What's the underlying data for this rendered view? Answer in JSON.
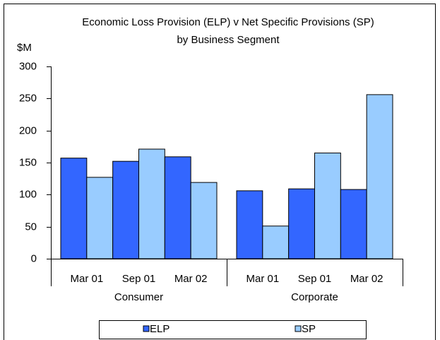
{
  "chart_data": {
    "type": "bar",
    "title": [
      "Economic Loss Provision (ELP) v Net Specific Provisions (SP)",
      "by Business Segment"
    ],
    "y_axis_label": "$M",
    "groups": [
      "Consumer",
      "Corporate"
    ],
    "categories": [
      "Mar 01",
      "Sep 01",
      "Mar 02",
      "Mar 01",
      "Sep 01",
      "Mar 02"
    ],
    "series": [
      {
        "name": "ELP",
        "color": "#3366ff",
        "values": [
          157,
          152,
          159,
          106,
          109,
          108
        ]
      },
      {
        "name": "SP",
        "color": "#99ccff",
        "values": [
          127,
          171,
          119,
          51,
          165,
          256
        ]
      }
    ],
    "ylim": [
      0,
      300
    ],
    "yticks": [
      0,
      50,
      100,
      150,
      200,
      250,
      300
    ],
    "grid": false,
    "legend": "bottom"
  }
}
